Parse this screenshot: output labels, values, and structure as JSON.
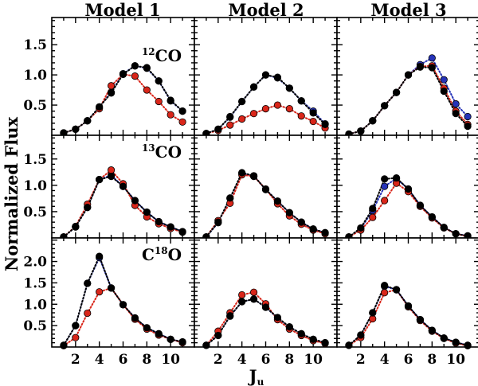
{
  "figure": {
    "ylabel": "Normalized Flux",
    "xlabel": "J",
    "xlabel_sub": "u",
    "columns": [
      "Model 1",
      "Model 2",
      "Model 3"
    ],
    "rows": [
      {
        "sup": "12",
        "base": "CO"
      },
      {
        "sup": "13",
        "base": "CO"
      },
      {
        "pre": "C",
        "sup": "18",
        "base": "O"
      }
    ],
    "colors": {
      "black": "#000000",
      "blue": "#2633b8",
      "red": "#d9261a"
    }
  },
  "chart_data": [
    {
      "type": "scatter",
      "panel": "12CO - Model 1",
      "xlim": [
        0,
        12
      ],
      "ylim": [
        0,
        1.95
      ],
      "xticks": [
        2,
        4,
        6,
        8,
        10
      ],
      "yticks": [
        0.5,
        1.0,
        1.5
      ],
      "x": [
        1,
        2,
        3,
        4,
        5,
        6,
        7,
        8,
        9,
        10,
        11
      ],
      "series": [
        {
          "color": "#2633b8",
          "values": [
            0.04,
            0.1,
            0.24,
            0.47,
            0.71,
            1.02,
            1.15,
            1.11,
            0.9,
            0.57,
            0.4
          ]
        },
        {
          "color": "#d9261a",
          "values": [
            0.04,
            0.1,
            0.24,
            0.44,
            0.82,
            1.01,
            0.98,
            0.75,
            0.56,
            0.34,
            0.22
          ]
        },
        {
          "color": "#000000",
          "values": [
            0.04,
            0.1,
            0.24,
            0.47,
            0.7,
            1.01,
            1.15,
            1.12,
            0.9,
            0.58,
            0.4
          ]
        }
      ]
    },
    {
      "type": "scatter",
      "panel": "12CO - Model 2",
      "xlim": [
        0,
        12
      ],
      "ylim": [
        0,
        1.95
      ],
      "xticks": [
        2,
        4,
        6,
        8,
        10
      ],
      "yticks": [
        0.5,
        1.0,
        1.5
      ],
      "x": [
        1,
        2,
        3,
        4,
        5,
        6,
        7,
        8,
        9,
        10,
        11
      ],
      "series": [
        {
          "color": "#2633b8",
          "values": [
            0.03,
            0.1,
            0.3,
            0.56,
            0.8,
            1.0,
            0.95,
            0.78,
            0.57,
            0.4,
            0.19
          ]
        },
        {
          "color": "#d9261a",
          "values": [
            0.03,
            0.08,
            0.17,
            0.27,
            0.36,
            0.44,
            0.5,
            0.44,
            0.32,
            0.23,
            0.12
          ]
        },
        {
          "color": "#000000",
          "values": [
            0.03,
            0.1,
            0.31,
            0.56,
            0.8,
            1.0,
            0.96,
            0.78,
            0.57,
            0.37,
            0.18
          ]
        }
      ]
    },
    {
      "type": "scatter",
      "panel": "12CO - Model 3",
      "xlim": [
        0,
        12
      ],
      "ylim": [
        0,
        1.95
      ],
      "xticks": [
        2,
        4,
        6,
        8,
        10
      ],
      "yticks": [
        0.5,
        1.0,
        1.5
      ],
      "x": [
        1,
        2,
        3,
        4,
        5,
        6,
        7,
        8,
        9,
        10,
        11
      ],
      "series": [
        {
          "color": "#2633b8",
          "values": [
            0.02,
            0.07,
            0.24,
            0.49,
            0.71,
            1.0,
            1.17,
            1.28,
            0.92,
            0.52,
            0.31
          ]
        },
        {
          "color": "#d9261a",
          "values": [
            0.02,
            0.07,
            0.24,
            0.49,
            0.71,
            1.0,
            1.14,
            1.15,
            0.78,
            0.4,
            0.18
          ]
        },
        {
          "color": "#000000",
          "values": [
            0.02,
            0.07,
            0.24,
            0.49,
            0.71,
            1.0,
            1.13,
            1.12,
            0.73,
            0.36,
            0.15
          ]
        }
      ]
    },
    {
      "type": "scatter",
      "panel": "13CO - Model 1",
      "xlim": [
        0,
        12
      ],
      "ylim": [
        0,
        1.95
      ],
      "xticks": [
        2,
        4,
        6,
        8,
        10
      ],
      "yticks": [
        0.5,
        1.0,
        1.5
      ],
      "x": [
        1,
        2,
        3,
        4,
        5,
        6,
        7,
        8,
        9,
        10,
        11
      ],
      "series": [
        {
          "color": "#2633b8",
          "values": [
            0.02,
            0.21,
            0.58,
            1.11,
            1.19,
            0.98,
            0.71,
            0.49,
            0.31,
            0.21,
            0.12
          ]
        },
        {
          "color": "#d9261a",
          "values": [
            0.02,
            0.22,
            0.64,
            1.11,
            1.29,
            1.03,
            0.62,
            0.4,
            0.27,
            0.18,
            0.11
          ]
        },
        {
          "color": "#000000",
          "values": [
            0.02,
            0.21,
            0.58,
            1.11,
            1.17,
            0.98,
            0.71,
            0.49,
            0.31,
            0.21,
            0.12
          ]
        }
      ]
    },
    {
      "type": "scatter",
      "panel": "13CO - Model 2",
      "xlim": [
        0,
        12
      ],
      "ylim": [
        0,
        1.95
      ],
      "xticks": [
        2,
        4,
        6,
        8,
        10
      ],
      "yticks": [
        0.5,
        1.0,
        1.5
      ],
      "x": [
        1,
        2,
        3,
        4,
        5,
        6,
        7,
        8,
        9,
        10,
        11
      ],
      "series": [
        {
          "color": "#2633b8",
          "values": [
            0.02,
            0.29,
            0.75,
            1.23,
            1.18,
            0.92,
            0.7,
            0.48,
            0.3,
            0.17,
            0.1
          ]
        },
        {
          "color": "#d9261a",
          "values": [
            0.02,
            0.33,
            0.66,
            1.2,
            1.17,
            0.93,
            0.65,
            0.42,
            0.26,
            0.15,
            0.08
          ]
        },
        {
          "color": "#000000",
          "values": [
            0.02,
            0.3,
            0.76,
            1.24,
            1.18,
            0.92,
            0.7,
            0.48,
            0.3,
            0.17,
            0.1
          ]
        }
      ]
    },
    {
      "type": "scatter",
      "panel": "13CO - Model 3",
      "xlim": [
        0,
        12
      ],
      "ylim": [
        0,
        1.95
      ],
      "xticks": [
        2,
        4,
        6,
        8,
        10
      ],
      "yticks": [
        0.5,
        1.0,
        1.5
      ],
      "x": [
        1,
        2,
        3,
        4,
        5,
        6,
        7,
        8,
        9,
        10,
        11
      ],
      "series": [
        {
          "color": "#2633b8",
          "values": [
            0.02,
            0.18,
            0.52,
            0.98,
            1.13,
            0.93,
            0.62,
            0.4,
            0.2,
            0.08,
            0.04
          ]
        },
        {
          "color": "#d9261a",
          "values": [
            0.02,
            0.15,
            0.39,
            0.71,
            1.04,
            0.88,
            0.6,
            0.38,
            0.19,
            0.08,
            0.03
          ]
        },
        {
          "color": "#000000",
          "values": [
            0.02,
            0.19,
            0.56,
            1.12,
            1.14,
            0.93,
            0.62,
            0.4,
            0.2,
            0.08,
            0.04
          ]
        }
      ]
    },
    {
      "type": "scatter",
      "panel": "C18O - Model 1",
      "xlim": [
        0,
        12
      ],
      "ylim": [
        0,
        2.55
      ],
      "xticks": [
        2,
        4,
        6,
        8,
        10
      ],
      "yticks": [
        0.5,
        1.0,
        1.5,
        2.0
      ],
      "x": [
        1,
        2,
        3,
        4,
        5,
        6,
        7,
        8,
        9,
        10,
        11
      ],
      "series": [
        {
          "color": "#2633b8",
          "values": [
            0.04,
            0.5,
            1.49,
            2.09,
            1.38,
            0.99,
            0.68,
            0.45,
            0.31,
            0.18,
            0.12
          ]
        },
        {
          "color": "#d9261a",
          "values": [
            0.03,
            0.22,
            0.79,
            1.29,
            1.38,
            0.99,
            0.65,
            0.42,
            0.28,
            0.18,
            0.1
          ]
        },
        {
          "color": "#000000",
          "values": [
            0.04,
            0.5,
            1.49,
            2.12,
            1.38,
            0.99,
            0.68,
            0.45,
            0.31,
            0.18,
            0.12
          ]
        }
      ]
    },
    {
      "type": "scatter",
      "panel": "C18O - Model 2",
      "xlim": [
        0,
        12
      ],
      "ylim": [
        0,
        2.55
      ],
      "xticks": [
        2,
        4,
        6,
        8,
        10
      ],
      "yticks": [
        0.5,
        1.0,
        1.5,
        2.0
      ],
      "x": [
        1,
        2,
        3,
        4,
        5,
        6,
        7,
        8,
        9,
        10,
        11
      ],
      "series": [
        {
          "color": "#2633b8",
          "values": [
            0.04,
            0.28,
            0.72,
            1.06,
            1.12,
            0.93,
            0.68,
            0.47,
            0.31,
            0.18,
            0.1
          ]
        },
        {
          "color": "#d9261a",
          "values": [
            0.04,
            0.37,
            0.8,
            1.22,
            1.28,
            1.01,
            0.64,
            0.42,
            0.27,
            0.15,
            0.08
          ]
        },
        {
          "color": "#000000",
          "values": [
            0.04,
            0.27,
            0.73,
            1.06,
            1.12,
            0.93,
            0.69,
            0.47,
            0.31,
            0.18,
            0.1
          ]
        }
      ]
    },
    {
      "type": "scatter",
      "panel": "C18O - Model 3",
      "xlim": [
        0,
        12
      ],
      "ylim": [
        0,
        2.55
      ],
      "xticks": [
        2,
        4,
        6,
        8,
        10
      ],
      "yticks": [
        0.5,
        1.0,
        1.5,
        2.0
      ],
      "x": [
        1,
        2,
        3,
        4,
        5,
        6,
        7,
        8,
        9,
        10,
        11
      ],
      "series": [
        {
          "color": "#2633b8",
          "values": [
            0.04,
            0.28,
            0.8,
            1.42,
            1.34,
            0.96,
            0.64,
            0.39,
            0.21,
            0.11,
            0.04
          ]
        },
        {
          "color": "#d9261a",
          "values": [
            0.04,
            0.22,
            0.66,
            1.27,
            1.34,
            0.94,
            0.62,
            0.37,
            0.2,
            0.09,
            0.03
          ]
        },
        {
          "color": "#000000",
          "values": [
            0.04,
            0.28,
            0.8,
            1.44,
            1.34,
            0.96,
            0.64,
            0.39,
            0.21,
            0.11,
            0.04
          ]
        }
      ]
    }
  ]
}
